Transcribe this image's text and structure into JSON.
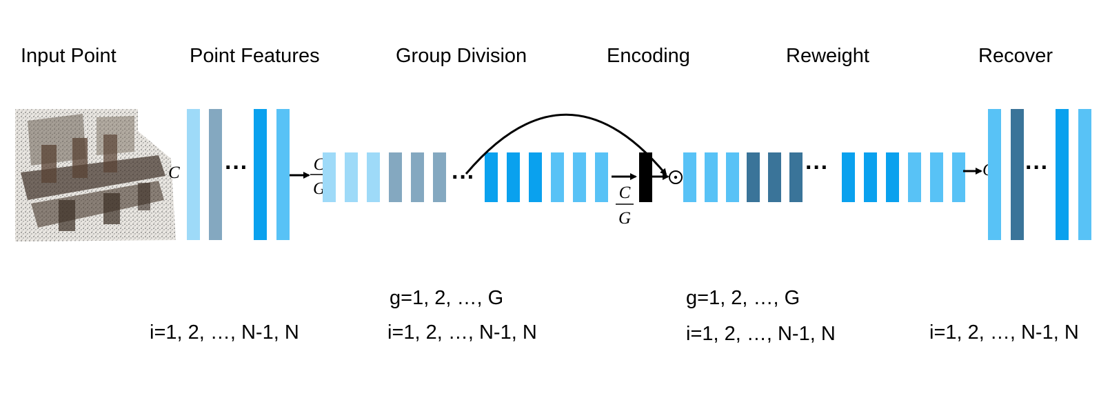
{
  "colors": {
    "light": "#9edaf8",
    "grey": "#84a8c0",
    "bright": "#0aa1ee",
    "sky": "#58c2f6",
    "dark": "#3a7499",
    "encoding_bar": "#000000"
  },
  "stages": {
    "input_point": "Input Point",
    "point_features": "Point Features",
    "group_division": "Group Division",
    "encoding": "Encoding",
    "reweight": "Reweight",
    "recover": "Recover"
  },
  "symbols": {
    "channel": "C",
    "frac_numerator": "C",
    "frac_denominator": "G",
    "ellipsis": "···",
    "product": "⊙"
  },
  "indices": {
    "group_division_g": "g=1, 2, …, G",
    "reweight_g": "g=1, 2, …, G",
    "point_features_i": "i=1, 2, …, N-1, N",
    "group_division_i": "i=1, 2, …, N-1, N",
    "reweight_i": "i=1, 2, …, N-1, N",
    "recover_i": "i=1, 2, …, N-1, N"
  },
  "point_features_bars": [
    "light",
    "grey",
    "bright",
    "sky"
  ],
  "group_division_bars": [
    "light",
    "light",
    "light",
    "grey",
    "grey",
    "grey",
    "bright",
    "bright",
    "bright",
    "sky",
    "sky",
    "sky"
  ],
  "reweight_bars": [
    "sky",
    "sky",
    "sky",
    "dark",
    "dark",
    "dark",
    "bright",
    "bright",
    "bright",
    "sky",
    "sky",
    "sky"
  ],
  "recover_bars": [
    "sky",
    "dark",
    "bright",
    "sky"
  ]
}
